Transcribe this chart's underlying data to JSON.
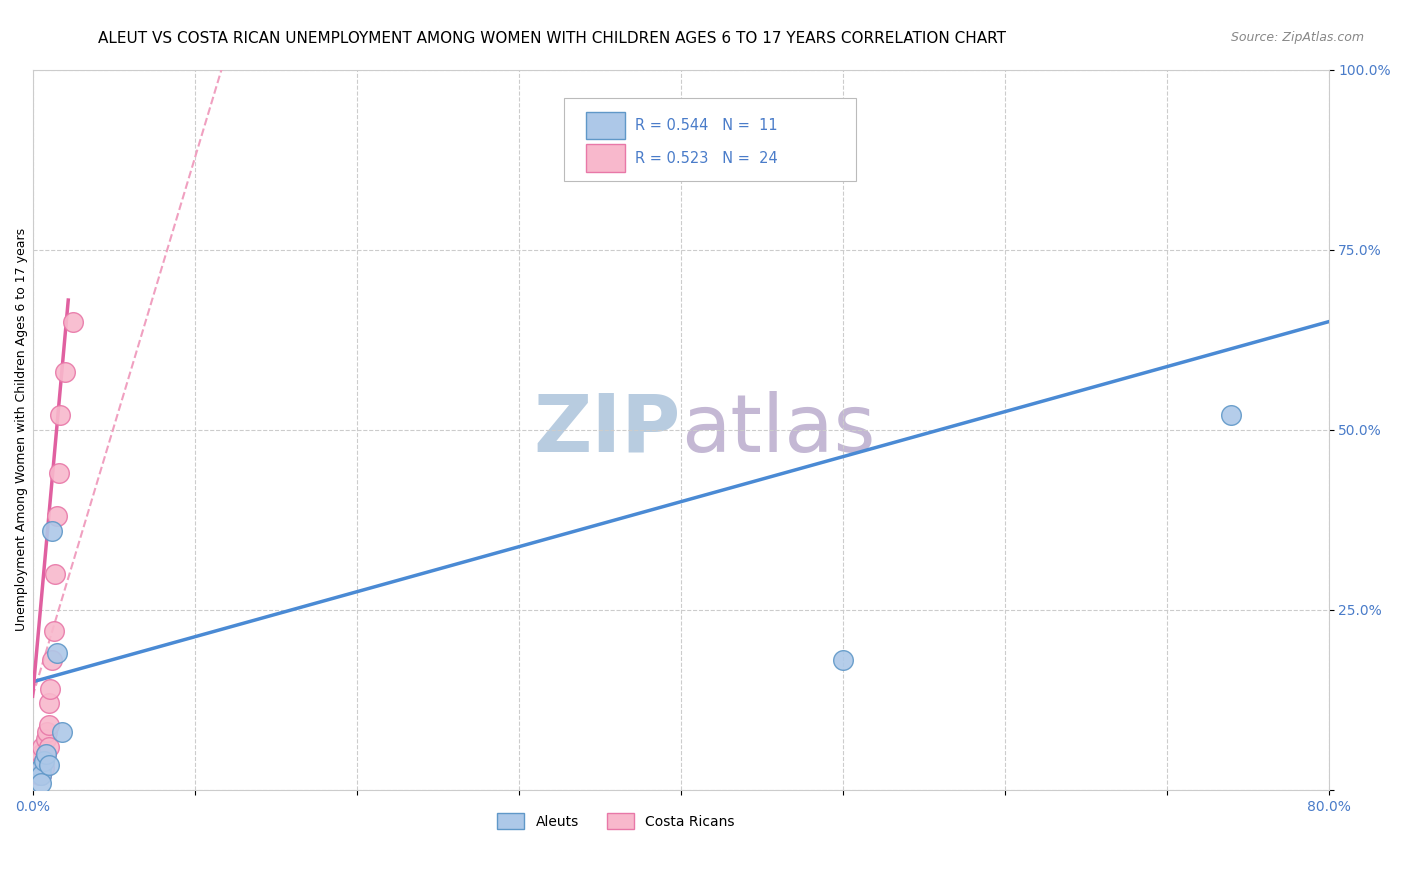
{
  "title": "ALEUT VS COSTA RICAN UNEMPLOYMENT AMONG WOMEN WITH CHILDREN AGES 6 TO 17 YEARS CORRELATION CHART",
  "source": "Source: ZipAtlas.com",
  "ylabel": "Unemployment Among Women with Children Ages 6 to 17 years",
  "xlim": [
    0.0,
    0.8
  ],
  "ylim": [
    0.0,
    1.0
  ],
  "aleuts_x": [
    0.005,
    0.005,
    0.005,
    0.007,
    0.008,
    0.01,
    0.012,
    0.015,
    0.018,
    0.74,
    0.5
  ],
  "aleuts_y": [
    0.03,
    0.02,
    0.01,
    0.04,
    0.05,
    0.035,
    0.36,
    0.19,
    0.08,
    0.52,
    0.18
  ],
  "costa_x": [
    0.003,
    0.004,
    0.004,
    0.005,
    0.005,
    0.005,
    0.006,
    0.007,
    0.007,
    0.008,
    0.008,
    0.009,
    0.01,
    0.01,
    0.01,
    0.011,
    0.012,
    0.013,
    0.014,
    0.015,
    0.016,
    0.017,
    0.02,
    0.025
  ],
  "costa_y": [
    0.03,
    0.04,
    0.02,
    0.05,
    0.03,
    0.02,
    0.06,
    0.04,
    0.03,
    0.07,
    0.05,
    0.08,
    0.12,
    0.09,
    0.06,
    0.14,
    0.18,
    0.22,
    0.3,
    0.38,
    0.44,
    0.52,
    0.58,
    0.65
  ],
  "aleut_R": 0.544,
  "aleut_N": 11,
  "costa_R": 0.523,
  "costa_N": 24,
  "aleut_color": "#adc8e8",
  "aleut_edge": "#6098c8",
  "costa_color": "#f8b8cc",
  "costa_edge": "#e878a8",
  "aleut_line_color": "#4a8ad4",
  "costa_line_color": "#e060a0",
  "costa_dash_color": "#f0a0c0",
  "background_color": "#ffffff",
  "watermark_zip": "ZIP",
  "watermark_atlas": "atlas",
  "watermark_color_zip": "#b8cce0",
  "watermark_color_atlas": "#c8b8d8",
  "title_fontsize": 11,
  "source_fontsize": 9,
  "legend_color": "#4a7cc9"
}
